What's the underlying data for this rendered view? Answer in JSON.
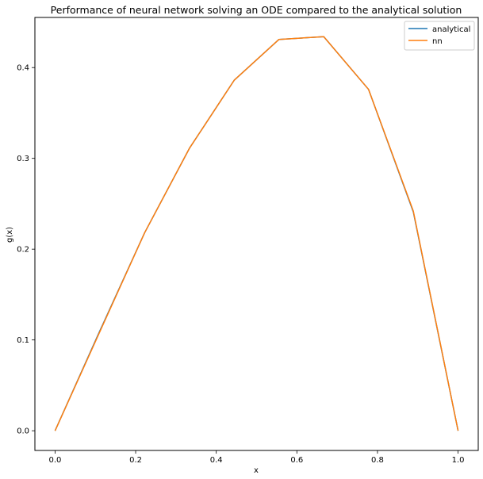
{
  "chart_data": {
    "type": "line",
    "title": "Performance of neural network solving an ODE compared to the analytical solution",
    "xlabel": "x",
    "ylabel": "g(x)",
    "xlim": [
      -0.05,
      1.05
    ],
    "ylim": [
      -0.0217,
      0.4552
    ],
    "xticks": [
      0.0,
      0.2,
      0.4,
      0.6,
      0.8,
      1.0
    ],
    "xtick_labels": [
      "0.0",
      "0.2",
      "0.4",
      "0.6",
      "0.8",
      "1.0"
    ],
    "yticks": [
      0.0,
      0.1,
      0.2,
      0.3,
      0.4
    ],
    "ytick_labels": [
      "0.0",
      "0.1",
      "0.2",
      "0.3",
      "0.4"
    ],
    "grid": false,
    "legend_position": "top-right",
    "x": [
      0.0,
      0.1111,
      0.2222,
      0.3333,
      0.4444,
      0.5556,
      0.6667,
      0.7778,
      0.8889,
      1.0
    ],
    "series": [
      {
        "name": "analytical",
        "color": "#1f77b4",
        "values": [
          0.0,
          0.11,
          0.218,
          0.311,
          0.386,
          0.431,
          0.434,
          0.376,
          0.241,
          0.0
        ]
      },
      {
        "name": "nn",
        "color": "#ff7f0e",
        "values": [
          0.0,
          0.109,
          0.218,
          0.311,
          0.386,
          0.431,
          0.434,
          0.376,
          0.242,
          0.0
        ]
      }
    ]
  }
}
